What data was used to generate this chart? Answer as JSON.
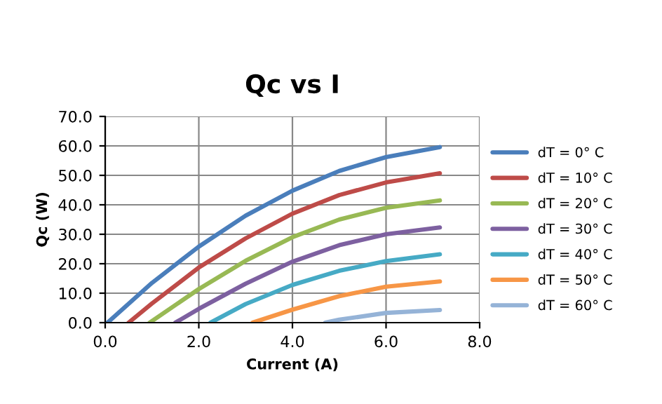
{
  "chart_data": {
    "type": "line",
    "title": "Qc vs I",
    "xlabel": "Current (A)",
    "ylabel": "Qc (W)",
    "xlim": [
      0,
      8
    ],
    "xticks": [
      {
        "value": 0,
        "label": "0.0"
      },
      {
        "value": 2,
        "label": "2.0"
      },
      {
        "value": 4,
        "label": "4.0"
      },
      {
        "value": 6,
        "label": "6.0"
      },
      {
        "value": 8,
        "label": "8.0"
      }
    ],
    "ylim": [
      0,
      70
    ],
    "yticks": [
      {
        "value": 0,
        "label": "0.0"
      },
      {
        "value": 10,
        "label": "10.0"
      },
      {
        "value": 20,
        "label": "20.0"
      },
      {
        "value": 30,
        "label": "30.0"
      },
      {
        "value": 40,
        "label": "40.0"
      },
      {
        "value": 50,
        "label": "50.0"
      },
      {
        "value": 60,
        "label": "60.0"
      },
      {
        "value": 70,
        "label": "70.0"
      }
    ],
    "grid": true,
    "legend": "right",
    "marker": "none",
    "line_style": "solid",
    "series": [
      {
        "name": "dT = 0° C",
        "color": "#4a7ebb",
        "x": [
          0.05,
          1,
          2,
          3,
          4,
          5,
          6,
          7.15
        ],
        "values": [
          0,
          13.5,
          25.8,
          36.3,
          44.8,
          51.5,
          56.2,
          59.6
        ]
      },
      {
        "name": "dT = 10° C",
        "color": "#be4b48",
        "x": [
          0.5,
          1,
          2,
          3,
          4,
          5,
          6,
          7.15
        ],
        "values": [
          0,
          6.5,
          18.7,
          28.6,
          37.0,
          43.3,
          47.6,
          50.7
        ]
      },
      {
        "name": "dT = 20° C",
        "color": "#98b954",
        "x": [
          0.95,
          2,
          3,
          4,
          5,
          6,
          7.15
        ],
        "values": [
          0,
          11.4,
          21.0,
          29.0,
          35.0,
          39.0,
          41.5
        ]
      },
      {
        "name": "dT = 30° C",
        "color": "#7d60a0",
        "x": [
          1.5,
          2,
          3,
          4,
          5,
          6,
          7.15
        ],
        "values": [
          0,
          4.7,
          13.2,
          20.7,
          26.3,
          30.0,
          32.3
        ]
      },
      {
        "name": "dT = 40° C",
        "color": "#46aac5",
        "x": [
          2.25,
          3,
          4,
          5,
          6,
          7.15
        ],
        "values": [
          0,
          6.3,
          12.8,
          17.6,
          20.9,
          23.2
        ]
      },
      {
        "name": "dT = 50° C",
        "color": "#f79646",
        "x": [
          3.15,
          4,
          5,
          6,
          7.15
        ],
        "values": [
          0,
          4.4,
          9.0,
          12.2,
          14.0
        ]
      },
      {
        "name": "dT = 60° C",
        "color": "#95b3d7",
        "x": [
          4.7,
          5,
          6,
          7.15
        ],
        "values": [
          0,
          1.0,
          3.3,
          4.3
        ]
      }
    ]
  }
}
